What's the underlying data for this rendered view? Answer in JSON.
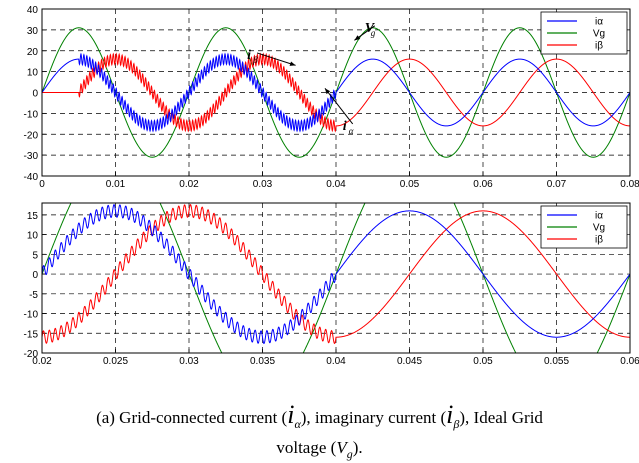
{
  "colors": {
    "ialpha": "#0000ff",
    "vg": "#008000",
    "ibeta": "#ff0000",
    "grid": "#000000"
  },
  "chart_data": [
    {
      "type": "line",
      "x_range": [
        0,
        0.08
      ],
      "ylim": [
        -40,
        40
      ],
      "x_ticks": [
        "0",
        "0.01",
        "0.02",
        "0.03",
        "0.04",
        "0.05",
        "0.06",
        "0.07",
        "0.08"
      ],
      "y_ticks": [
        "40",
        "30",
        "20",
        "10",
        "0",
        "-10",
        "-20",
        "-30",
        "-40"
      ],
      "grid": true,
      "legend_position": "top-right",
      "series": [
        {
          "name": "iα",
          "color_key": "ialpha",
          "amplitude": 16,
          "frequency_hz": 50,
          "phase": "sin",
          "ripple_region": [
            0.005,
            0.04
          ],
          "ripple_amp": 2.5
        },
        {
          "name": "Vg",
          "color_key": "vg",
          "amplitude": 31,
          "frequency_hz": 50,
          "phase": "sin",
          "ripple_region": null,
          "ripple_amp": 0
        },
        {
          "name": "iβ",
          "color_key": "ibeta",
          "amplitude": 16,
          "frequency_hz": 50,
          "phase": "-cos",
          "starts_at": 0.005,
          "ripple_region": [
            0.005,
            0.04
          ],
          "ripple_amp": 2.5
        }
      ],
      "annotations": [
        {
          "symbol": "i",
          "subscript": "β",
          "x": 0.029,
          "y": 18,
          "target_x": 0.0345,
          "target_y": 13
        },
        {
          "symbol": "i",
          "subscript": "α",
          "x": 0.042,
          "y": -16,
          "target_x": 0.0385,
          "target_y": 2
        },
        {
          "symbol": "V",
          "subscript": "g",
          "x": 0.045,
          "y": 31,
          "target_x": 0.0425,
          "target_y": 25
        }
      ]
    },
    {
      "type": "line",
      "x_range": [
        0.02,
        0.06
      ],
      "ylim": [
        -20,
        18
      ],
      "x_ticks": [
        "0.02",
        "0.025",
        "0.03",
        "0.035",
        "0.04",
        "0.045",
        "0.05",
        "0.055",
        "0.06"
      ],
      "y_ticks": [
        "15",
        "10",
        "5",
        "0",
        "-5",
        "-10",
        "-15",
        "-20"
      ],
      "grid": true,
      "legend_position": "top-right",
      "series": [
        {
          "name": "iα",
          "color_key": "ialpha",
          "amplitude": 16,
          "frequency_hz": 50,
          "phase": "sin",
          "ripple_region": [
            0.02,
            0.04
          ],
          "ripple_amp": 1.6
        },
        {
          "name": "Vg",
          "color_key": "vg",
          "amplitude": 31,
          "frequency_hz": 50,
          "phase": "sin",
          "ripple_region": null,
          "ripple_amp": 0
        },
        {
          "name": "iβ",
          "color_key": "ibeta",
          "amplitude": 16,
          "frequency_hz": 50,
          "phase": "-cos",
          "ripple_region": [
            0.02,
            0.04
          ],
          "ripple_amp": 1.6
        }
      ]
    }
  ],
  "caption": {
    "line1_a": "(a) Grid-connected current (",
    "line1_b": "), imaginary current (",
    "line1_c": "), Ideal Grid",
    "line2_a": "voltage (",
    "line2_b": ").",
    "sym_i": "i",
    "sym_v": "V",
    "sub_alpha": "α",
    "sub_beta": "β",
    "sub_g": "g"
  }
}
